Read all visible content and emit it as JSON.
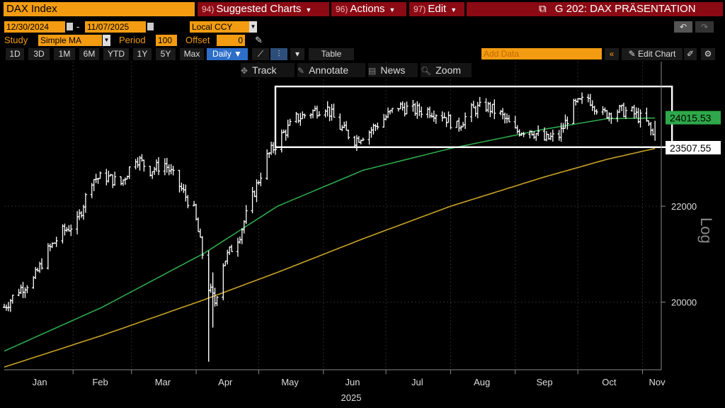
{
  "toolbar": {
    "security": "DAX Index",
    "menu_suggested": {
      "num": "94)",
      "label": "Suggested Charts"
    },
    "menu_actions": {
      "num": "96)",
      "label": "Actions"
    },
    "menu_edit": {
      "num": "97)",
      "label": "Edit"
    },
    "chart_title": "G 202: DAX PRÄSENTATION"
  },
  "params": {
    "start_date": "12/30/2024",
    "end_date": "11/07/2025",
    "currency": "Local CCY",
    "study_label": "Study",
    "study_value": "Simple MA",
    "period_label": "Period",
    "period_value": "100",
    "offset_label": "Offset",
    "offset_value": "0"
  },
  "ranges": [
    "1D",
    "3D",
    "1M",
    "6M",
    "YTD",
    "1Y",
    "5Y",
    "Max"
  ],
  "frequency": "Daily",
  "table_label": "Table",
  "add_data_placeholder": "Add Data",
  "edit_chart_label": "Edit Chart",
  "tools": [
    "Track",
    "Annotate",
    "News",
    "Zoom"
  ],
  "colors": {
    "background": "#000000",
    "price": "#ffffff",
    "ma_green": "#2ea84a",
    "ma_yellow": "#c9a227",
    "accent_orange": "#f39c12",
    "title_red": "#8b0a14"
  },
  "chart_data": {
    "type": "bar",
    "scale": "log",
    "ylabel": "Log",
    "year_label": "2025",
    "x_ticks": [
      "Jan",
      "Feb",
      "Mar",
      "Apr",
      "May",
      "Jun",
      "Jul",
      "Aug",
      "Sep",
      "Oct",
      "Nov"
    ],
    "y_ticks": [
      20000,
      22000
    ],
    "ylim": [
      18700,
      25400
    ],
    "last_values": {
      "price": "23507.55",
      "ma_green": "24015.53"
    },
    "range_box": {
      "low": 23330,
      "high": 24780,
      "start": "2025-05-09",
      "end": "2025-11-07"
    },
    "anchors_price": [
      [
        "2024-12-30",
        19900
      ],
      [
        "2025-01-06",
        20250
      ],
      [
        "2025-01-13",
        20450
      ],
      [
        "2025-01-20",
        21050
      ],
      [
        "2025-01-27",
        21450
      ],
      [
        "2025-02-03",
        21650
      ],
      [
        "2025-02-10",
        22600
      ],
      [
        "2025-02-17",
        22650
      ],
      [
        "2025-02-24",
        22500
      ],
      [
        "2025-03-03",
        23100
      ],
      [
        "2025-03-10",
        22800
      ],
      [
        "2025-03-17",
        22950
      ],
      [
        "2025-03-24",
        22450
      ],
      [
        "2025-03-31",
        21900
      ],
      [
        "2025-04-07",
        20300
      ],
      [
        "2025-04-10",
        20000
      ],
      [
        "2025-04-14",
        20800
      ],
      [
        "2025-04-22",
        21400
      ],
      [
        "2025-04-28",
        22200
      ],
      [
        "2025-05-05",
        23100
      ],
      [
        "2025-05-12",
        23600
      ],
      [
        "2025-05-19",
        24000
      ],
      [
        "2025-05-26",
        24150
      ],
      [
        "2025-06-02",
        24300
      ],
      [
        "2025-06-09",
        23800
      ],
      [
        "2025-06-16",
        23500
      ],
      [
        "2025-06-23",
        23700
      ],
      [
        "2025-06-30",
        24000
      ],
      [
        "2025-07-07",
        24300
      ],
      [
        "2025-07-14",
        24200
      ],
      [
        "2025-07-21",
        24200
      ],
      [
        "2025-07-28",
        24100
      ],
      [
        "2025-08-04",
        23800
      ],
      [
        "2025-08-11",
        24200
      ],
      [
        "2025-08-18",
        24300
      ],
      [
        "2025-08-25",
        24100
      ],
      [
        "2025-09-01",
        23700
      ],
      [
        "2025-09-08",
        23750
      ],
      [
        "2025-09-15",
        23500
      ],
      [
        "2025-09-22",
        23600
      ],
      [
        "2025-09-29",
        24300
      ],
      [
        "2025-10-06",
        24500
      ],
      [
        "2025-10-13",
        24100
      ],
      [
        "2025-10-20",
        24200
      ],
      [
        "2025-10-27",
        24150
      ],
      [
        "2025-11-03",
        23900
      ],
      [
        "2025-11-07",
        23507.55
      ]
    ],
    "series": [
      {
        "color_key": "ma_green",
        "points": [
          [
            "2024-12-30",
            19050
          ],
          [
            "2025-02-15",
            19900
          ],
          [
            "2025-04-05",
            21000
          ],
          [
            "2025-05-10",
            22000
          ],
          [
            "2025-06-20",
            22800
          ],
          [
            "2025-08-01",
            23300
          ],
          [
            "2025-09-15",
            23750
          ],
          [
            "2025-10-15",
            24000
          ],
          [
            "2025-11-07",
            24015.53
          ]
        ]
      },
      {
        "color_key": "ma_yellow",
        "points": [
          [
            "2024-12-30",
            18750
          ],
          [
            "2025-02-15",
            19350
          ],
          [
            "2025-04-05",
            20050
          ],
          [
            "2025-05-10",
            20600
          ],
          [
            "2025-06-20",
            21300
          ],
          [
            "2025-08-01",
            22000
          ],
          [
            "2025-09-15",
            22650
          ],
          [
            "2025-10-15",
            23050
          ],
          [
            "2025-11-07",
            23300
          ]
        ]
      }
    ]
  }
}
